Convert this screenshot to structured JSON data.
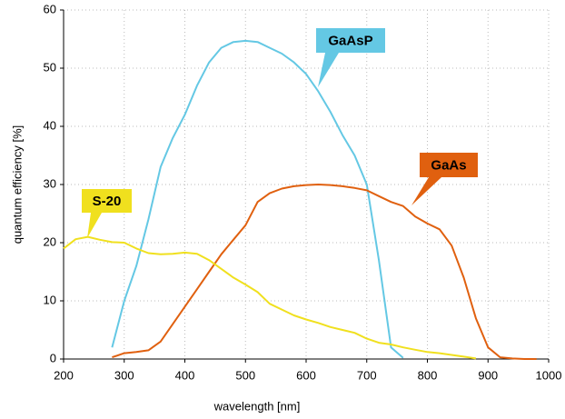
{
  "chart_data": {
    "type": "line",
    "xlabel": "wavelength [nm]",
    "ylabel": "quantum efficiency [%]",
    "x": [
      200,
      220,
      240,
      260,
      280,
      300,
      320,
      340,
      360,
      380,
      400,
      420,
      440,
      460,
      480,
      500,
      520,
      540,
      560,
      580,
      600,
      620,
      640,
      660,
      680,
      700,
      720,
      740,
      760,
      780,
      800,
      820,
      840,
      860,
      880,
      900,
      920,
      940,
      960,
      980
    ],
    "series": [
      {
        "name": "GaAsP",
        "color": "#64c8e4",
        "values": [
          null,
          null,
          null,
          null,
          2,
          10,
          16,
          24,
          33,
          38,
          42,
          47,
          51,
          53.5,
          54.5,
          54.7,
          54.5,
          53.5,
          52.5,
          51,
          49,
          46,
          42.5,
          38.5,
          35,
          30,
          17,
          2,
          0.2,
          null,
          null,
          null,
          null,
          null,
          null,
          null,
          null,
          null,
          null,
          null
        ]
      },
      {
        "name": "GaAs",
        "color": "#e0600f",
        "values": [
          null,
          null,
          null,
          null,
          0.3,
          1,
          1.2,
          1.5,
          3,
          6,
          9,
          12,
          15,
          18,
          20.5,
          23,
          27,
          28.5,
          29.3,
          29.7,
          29.9,
          30,
          29.9,
          29.7,
          29.4,
          29,
          28,
          27,
          26.3,
          24.5,
          23.3,
          22.3,
          19.5,
          14,
          7,
          2,
          0.3,
          0.1,
          0,
          0
        ]
      },
      {
        "name": "S-20",
        "color": "#f0e01e",
        "values": [
          19,
          20.6,
          21,
          20.5,
          20.1,
          20,
          19,
          18.2,
          18,
          18.1,
          18.3,
          18.1,
          17,
          15.5,
          14,
          12.8,
          11.5,
          9.5,
          8.5,
          7.5,
          6.8,
          6.2,
          5.5,
          5,
          4.5,
          3.5,
          2.8,
          2.5,
          2,
          1.6,
          1.2,
          1,
          0.7,
          0.4,
          0.1,
          null,
          null,
          null,
          null,
          null
        ]
      }
    ],
    "xlim": [
      200,
      1000
    ],
    "xticks": [
      200,
      300,
      400,
      500,
      600,
      700,
      800,
      900,
      1000
    ],
    "ylim": [
      0,
      60
    ],
    "yticks": [
      0,
      10,
      20,
      30,
      40,
      50,
      60
    ],
    "grid": true
  }
}
